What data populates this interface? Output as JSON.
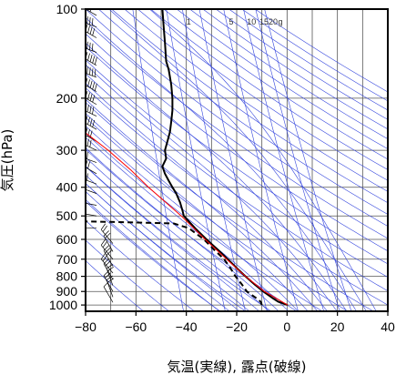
{
  "chart_data": {
    "type": "line",
    "xlabel": "気温(実線), 露点(破線)",
    "ylabel": "気圧(hPa)",
    "x_ticks": [
      -80,
      -60,
      -40,
      -20,
      0,
      20,
      40
    ],
    "y_ticks": [
      100,
      200,
      300,
      400,
      500,
      600,
      700,
      800,
      900,
      1000
    ],
    "xlim": [
      -80,
      40
    ],
    "ylim": [
      1050,
      100
    ],
    "y_scale": "log",
    "grid": true,
    "mixing_ratio_labels": [
      "1",
      "5",
      "10",
      "15",
      "20",
      "g"
    ],
    "series": [
      {
        "name": "",
        "style": "solid",
        "color": "#000000",
        "points": [
          {
            "p": 1000,
            "t": 0.2
          },
          {
            "p": 975,
            "t": -3.5
          },
          {
            "p": 950,
            "t": -5.5
          },
          {
            "p": 925,
            "t": -7.5
          },
          {
            "p": 900,
            "t": -9.5
          },
          {
            "p": 850,
            "t": -13.0
          },
          {
            "p": 800,
            "t": -16.5
          },
          {
            "p": 750,
            "t": -20.0
          },
          {
            "p": 700,
            "t": -23.5
          },
          {
            "p": 650,
            "t": -27.5
          },
          {
            "p": 600,
            "t": -32.0
          },
          {
            "p": 550,
            "t": -36.5
          },
          {
            "p": 500,
            "t": -41.0
          },
          {
            "p": 480,
            "t": -41.5
          },
          {
            "p": 450,
            "t": -42.5
          },
          {
            "p": 420,
            "t": -44.0
          },
          {
            "p": 400,
            "t": -45.5
          },
          {
            "p": 380,
            "t": -47.0
          },
          {
            "p": 360,
            "t": -48.5
          },
          {
            "p": 340,
            "t": -49.5
          },
          {
            "p": 320,
            "t": -48.0
          },
          {
            "p": 300,
            "t": -48.5
          },
          {
            "p": 280,
            "t": -47.5
          },
          {
            "p": 260,
            "t": -46.5
          },
          {
            "p": 240,
            "t": -46.0
          },
          {
            "p": 220,
            "t": -45.5
          },
          {
            "p": 200,
            "t": -45.5
          },
          {
            "p": 180,
            "t": -46.0
          },
          {
            "p": 160,
            "t": -47.0
          },
          {
            "p": 150,
            "t": -48.0
          },
          {
            "p": 130,
            "t": -48.5
          },
          {
            "p": 115,
            "t": -49.0
          },
          {
            "p": 100,
            "t": -49.5
          }
        ]
      },
      {
        "name": "",
        "style": "dashed",
        "color": "#000000",
        "points": [
          {
            "p": 1000,
            "t": -10.0
          },
          {
            "p": 975,
            "t": -10.5
          },
          {
            "p": 950,
            "t": -12.0
          },
          {
            "p": 925,
            "t": -14.0
          },
          {
            "p": 900,
            "t": -16.0
          },
          {
            "p": 850,
            "t": -18.0
          },
          {
            "p": 800,
            "t": -20.5
          },
          {
            "p": 750,
            "t": -22.5
          },
          {
            "p": 700,
            "t": -25.0
          },
          {
            "p": 650,
            "t": -29.0
          },
          {
            "p": 600,
            "t": -33.0
          },
          {
            "p": 550,
            "t": -39.0
          },
          {
            "p": 530,
            "t": -45.0
          },
          {
            "p": 525,
            "t": -65.0
          },
          {
            "p": 522,
            "t": -80.0
          }
        ]
      },
      {
        "name": "",
        "style": "solid",
        "color": "#ff0000",
        "points": [
          {
            "p": 1000,
            "t": 0.2
          },
          {
            "p": 900,
            "t": -9.0
          },
          {
            "p": 800,
            "t": -16.5
          },
          {
            "p": 700,
            "t": -24.0
          },
          {
            "p": 600,
            "t": -32.5
          },
          {
            "p": 500,
            "t": -42.0
          },
          {
            "p": 400,
            "t": -55.0
          },
          {
            "p": 350,
            "t": -62.0
          },
          {
            "p": 300,
            "t": -71.0
          },
          {
            "p": 270,
            "t": -78.0
          },
          {
            "p": 262,
            "t": -80.0
          }
        ]
      }
    ]
  }
}
